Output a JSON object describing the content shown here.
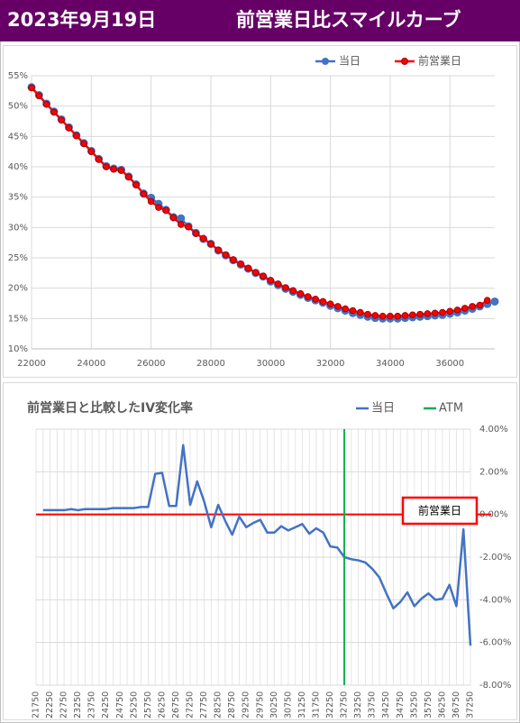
{
  "header": {
    "date": "2023年9月19日",
    "title": "前営業日比スマイルカーブ"
  },
  "chart_data": [
    {
      "type": "line",
      "x": [
        22000,
        22250,
        22500,
        22750,
        23000,
        23250,
        23500,
        23750,
        24000,
        24250,
        24500,
        24750,
        25000,
        25250,
        25500,
        25750,
        26000,
        26250,
        26500,
        26750,
        27000,
        27250,
        27500,
        27750,
        28000,
        28250,
        28500,
        28750,
        29000,
        29250,
        29500,
        29750,
        30000,
        30250,
        30500,
        30750,
        31000,
        31250,
        31500,
        31750,
        32000,
        32250,
        32500,
        32750,
        33000,
        33250,
        33500,
        33750,
        34000,
        34250,
        34500,
        34750,
        35000,
        35250,
        35500,
        35750,
        36000,
        36250,
        36500,
        36750,
        37000,
        37250,
        37500
      ],
      "xlim": [
        22000,
        37500
      ],
      "xticks": [
        22000,
        24000,
        26000,
        28000,
        30000,
        32000,
        34000,
        36000
      ],
      "ylim": [
        10,
        55
      ],
      "yticks": [
        {
          "value": 10,
          "label": "10%"
        },
        {
          "value": 15,
          "label": "15%"
        },
        {
          "value": 20,
          "label": "20%"
        },
        {
          "value": 25,
          "label": "25%"
        },
        {
          "value": 30,
          "label": "30%"
        },
        {
          "value": 35,
          "label": "35%"
        },
        {
          "value": 40,
          "label": "40%"
        },
        {
          "value": 45,
          "label": "45%"
        },
        {
          "value": 50,
          "label": "50%"
        },
        {
          "value": 55,
          "label": "55%"
        }
      ],
      "grid": true,
      "legend": "top-right",
      "series": [
        {
          "name": "当日",
          "color": "#4472c4",
          "values": [
            53.1,
            51.8,
            50.4,
            49.1,
            47.8,
            46.5,
            45.2,
            43.9,
            42.6,
            41.3,
            40.1,
            39.7,
            39.5,
            38.4,
            37.1,
            35.6,
            34.9,
            33.9,
            32.9,
            31.7,
            31.5,
            30.2,
            29.1,
            28.1,
            27.3,
            26.2,
            25.4,
            24.6,
            23.9,
            23.2,
            22.5,
            21.9,
            21.1,
            20.5,
            19.9,
            19.4,
            18.9,
            18.4,
            18.0,
            17.6,
            17.1,
            16.7,
            16.3,
            15.9,
            15.6,
            15.3,
            15.1,
            15,
            15,
            15,
            15.1,
            15.2,
            15.3,
            15.4,
            15.5,
            15.6,
            15.8,
            16,
            16.3,
            16.6,
            17.0,
            17.4,
            17.8
          ]
        },
        {
          "name": "前営業日",
          "color": "#ff0000",
          "values": [
            53,
            51.7,
            50.3,
            49,
            47.7,
            46.4,
            45.1,
            43.8,
            42.5,
            41.2,
            40,
            39.6,
            39.4,
            38.3,
            37,
            35.5,
            34.3,
            33.3,
            32.8,
            31.6,
            30.5,
            30.1,
            29,
            28.2,
            27.3,
            26.3,
            25.5,
            24.7,
            24,
            23.3,
            22.6,
            22,
            21.3,
            20.7,
            20.1,
            19.6,
            19.1,
            18.6,
            18.2,
            17.8,
            17.4,
            17,
            16.6,
            16.3,
            16,
            15.7,
            15.5,
            15.4,
            15.4,
            15.4,
            15.5,
            15.6,
            15.7,
            15.8,
            15.9,
            16,
            16.2,
            16.4,
            16.7,
            17,
            17.2,
            18,
            null
          ]
        }
      ]
    },
    {
      "type": "line",
      "title": "前営業日と比較したIV変化率",
      "categories": [
        21750,
        null,
        22250,
        null,
        22750,
        null,
        23250,
        null,
        23750,
        null,
        24250,
        null,
        24750,
        null,
        25250,
        null,
        25750,
        null,
        26250,
        null,
        26750,
        null,
        27250,
        null,
        27750,
        null,
        28250,
        null,
        28750,
        null,
        29250,
        null,
        29750,
        null,
        30250,
        null,
        30750,
        null,
        31250,
        null,
        31750,
        null,
        32250,
        null,
        32750,
        null,
        33250,
        null,
        33750,
        null,
        34250,
        null,
        34750,
        null,
        35250,
        null,
        35750,
        null,
        36250,
        null,
        36750,
        null,
        37250
      ],
      "y2lim": [
        -8,
        4
      ],
      "y2ticks": [
        {
          "value": 4,
          "label": "4.00%"
        },
        {
          "value": 2,
          "label": "2.00%"
        },
        {
          "value": 0,
          "label": "0.00%"
        },
        {
          "value": -2,
          "label": "-2.00%"
        },
        {
          "value": -4,
          "label": "-4.00%"
        },
        {
          "value": -6,
          "label": "-6.00%"
        },
        {
          "value": -8,
          "label": "-8.00%"
        }
      ],
      "grid": true,
      "legend": "top-right",
      "series": [
        {
          "name": "当日",
          "color": "#4472c4",
          "axis": "y2",
          "values": [
            null,
            0.2,
            0.2,
            0.2,
            0.2,
            0.25,
            0.2,
            0.25,
            0.25,
            0.25,
            0.25,
            0.3,
            0.3,
            0.3,
            0.3,
            0.35,
            0.35,
            1.9,
            1.95,
            0.4,
            0.4,
            3.25,
            0.45,
            1.55,
            0.6,
            -0.6,
            0.45,
            -0.3,
            -0.95,
            -0.1,
            -0.6,
            -0.4,
            -0.25,
            -0.85,
            -0.85,
            -0.55,
            -0.75,
            -0.6,
            -0.45,
            -0.9,
            -0.65,
            -0.85,
            -1.5,
            -1.55,
            -2.0,
            -2.1,
            -2.15,
            -2.25,
            -2.55,
            -2.95,
            -3.7,
            -4.4,
            -4.1,
            -3.65,
            -4.3,
            -3.95,
            -3.7,
            -4.0,
            -3.95,
            -3.3,
            -4.3,
            -0.7,
            -6.15
          ]
        },
        {
          "name": "ATM",
          "color": "#00b050",
          "x": 32750
        }
      ],
      "reference": {
        "label": "前営業日",
        "value": 0,
        "color": "#ff0000"
      }
    }
  ]
}
